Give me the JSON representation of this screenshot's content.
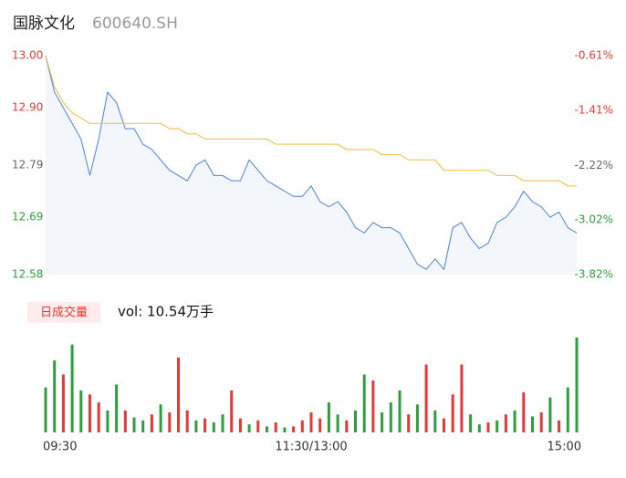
{
  "header": {
    "name": "国脉文化",
    "code": "600640.SH"
  },
  "chart_data": {
    "type": "intraday",
    "x": [
      0,
      4,
      8,
      12,
      16,
      20,
      24,
      28,
      32,
      36,
      40,
      44,
      48,
      52,
      56,
      60,
      64,
      68,
      72,
      76,
      80,
      84,
      88,
      92,
      96,
      100,
      104,
      108,
      112,
      116,
      120,
      124,
      128,
      132,
      136,
      140,
      144,
      148,
      152,
      156,
      160,
      164,
      168,
      172,
      176,
      180,
      184,
      188,
      192,
      196,
      200,
      204,
      208,
      212,
      216,
      220,
      224,
      228,
      232,
      236,
      240
    ],
    "xlim": [
      0,
      240
    ],
    "xticks": [
      {
        "value": 0,
        "label": "09:30"
      },
      {
        "value": 120,
        "label": "11:30/13:00"
      },
      {
        "value": 240,
        "label": "15:00"
      }
    ],
    "ylim": [
      12.58,
      13.0
    ],
    "yticks": [
      {
        "value": 13.0,
        "label": "13.00"
      },
      {
        "value": 12.9,
        "label": "12.90"
      },
      12.79,
      12.69,
      12.58
    ],
    "ytick_colors": [
      "#e53935",
      "#e53935",
      "#666666",
      "#2e9e3e",
      "#2e9e3e"
    ],
    "y2lim": [
      -3.82,
      -0.61
    ],
    "y2ticks": [
      {
        "value": -0.61,
        "label": "-0.61%"
      },
      {
        "value": -1.41,
        "label": "-1.41%"
      },
      {
        "value": -2.22,
        "label": "-2.22%"
      },
      {
        "value": -3.02,
        "label": "-3.02%"
      },
      {
        "value": -3.82,
        "label": "-3.82%"
      }
    ],
    "series": [
      {
        "color": "#4a7fe0",
        "values": [
          13.0,
          12.93,
          12.9,
          12.87,
          12.84,
          12.77,
          12.84,
          12.93,
          12.91,
          12.86,
          12.86,
          12.83,
          12.82,
          12.8,
          12.78,
          12.77,
          12.76,
          12.79,
          12.8,
          12.77,
          12.77,
          12.76,
          12.76,
          12.8,
          12.78,
          12.76,
          12.75,
          12.74,
          12.73,
          12.73,
          12.75,
          12.72,
          12.71,
          12.72,
          12.7,
          12.67,
          12.66,
          12.68,
          12.67,
          12.67,
          12.66,
          12.63,
          12.6,
          12.59,
          12.61,
          12.59,
          12.67,
          12.68,
          12.65,
          12.63,
          12.64,
          12.68,
          12.69,
          12.71,
          12.74,
          12.72,
          12.71,
          12.69,
          12.7,
          12.67,
          12.66
        ]
      },
      {
        "color": "#f5b942",
        "values": [
          13.0,
          12.94,
          12.91,
          12.89,
          12.88,
          12.87,
          12.87,
          12.87,
          12.87,
          12.87,
          12.87,
          12.87,
          12.87,
          12.87,
          12.86,
          12.86,
          12.85,
          12.85,
          12.84,
          12.84,
          12.84,
          12.84,
          12.84,
          12.84,
          12.84,
          12.84,
          12.83,
          12.83,
          12.83,
          12.83,
          12.83,
          12.83,
          12.83,
          12.83,
          12.82,
          12.82,
          12.82,
          12.82,
          12.81,
          12.81,
          12.81,
          12.8,
          12.8,
          12.8,
          12.8,
          12.78,
          12.78,
          12.78,
          12.78,
          12.78,
          12.78,
          12.77,
          12.77,
          12.77,
          12.76,
          12.76,
          12.76,
          12.76,
          12.76,
          12.75,
          12.75
        ]
      }
    ],
    "volume": {
      "label": "日成交量",
      "summary": "vol: 10.54万手",
      "values": [
        45,
        72,
        58,
        88,
        42,
        38,
        30,
        22,
        48,
        22,
        15,
        12,
        18,
        28,
        20,
        75,
        22,
        12,
        14,
        10,
        18,
        42,
        14,
        8,
        12,
        6,
        10,
        5,
        6,
        12,
        20,
        14,
        30,
        18,
        12,
        22,
        58,
        52,
        20,
        30,
        42,
        18,
        28,
        68,
        22,
        14,
        38,
        68,
        18,
        8,
        10,
        12,
        18,
        22,
        40,
        16,
        20,
        35,
        12,
        45,
        95
      ],
      "colors": [
        "#2e9e3e",
        "#2e9e3e",
        "#e53935",
        "#2e9e3e",
        "#2e9e3e",
        "#e53935",
        "#e53935",
        "#2e9e3e",
        "#2e9e3e",
        "#e53935",
        "#2e9e3e",
        "#2e9e3e",
        "#e53935",
        "#2e9e3e",
        "#e53935",
        "#e53935",
        "#e53935",
        "#2e9e3e",
        "#e53935",
        "#2e9e3e",
        "#2e9e3e",
        "#e53935",
        "#e53935",
        "#2e9e3e",
        "#e53935",
        "#2e9e3e",
        "#e53935",
        "#2e9e3e",
        "#e53935",
        "#e53935",
        "#e53935",
        "#e53935",
        "#2e9e3e",
        "#2e9e3e",
        "#e53935",
        "#2e9e3e",
        "#2e9e3e",
        "#e53935",
        "#2e9e3e",
        "#2e9e3e",
        "#2e9e3e",
        "#e53935",
        "#2e9e3e",
        "#e53935",
        "#2e9e3e",
        "#e53935",
        "#e53935",
        "#e53935",
        "#2e9e3e",
        "#2e9e3e",
        "#e53935",
        "#2e9e3e",
        "#e53935",
        "#2e9e3e",
        "#e53935",
        "#2e9e3e",
        "#e53935",
        "#2e9e3e",
        "#e53935",
        "#2e9e3e",
        "#2e9e3e"
      ]
    }
  }
}
